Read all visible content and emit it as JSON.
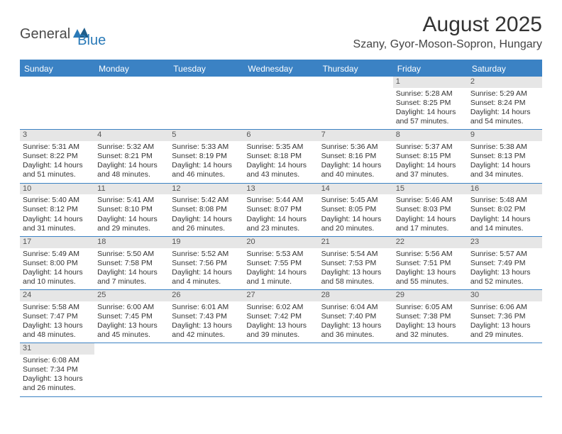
{
  "logo": {
    "text1": "General",
    "text2": "Blue"
  },
  "title": "August 2025",
  "location": "Szany, Gyor-Moson-Sopron, Hungary",
  "weekdays": [
    "Sunday",
    "Monday",
    "Tuesday",
    "Wednesday",
    "Thursday",
    "Friday",
    "Saturday"
  ],
  "colors": {
    "brand": "#3b82c4",
    "dayband": "#e6e6e6",
    "text": "#333333"
  },
  "weeks": [
    [
      null,
      null,
      null,
      null,
      null,
      {
        "n": "1",
        "sr": "Sunrise: 5:28 AM",
        "ss": "Sunset: 8:25 PM",
        "d1": "Daylight: 14 hours",
        "d2": "and 57 minutes."
      },
      {
        "n": "2",
        "sr": "Sunrise: 5:29 AM",
        "ss": "Sunset: 8:24 PM",
        "d1": "Daylight: 14 hours",
        "d2": "and 54 minutes."
      }
    ],
    [
      {
        "n": "3",
        "sr": "Sunrise: 5:31 AM",
        "ss": "Sunset: 8:22 PM",
        "d1": "Daylight: 14 hours",
        "d2": "and 51 minutes."
      },
      {
        "n": "4",
        "sr": "Sunrise: 5:32 AM",
        "ss": "Sunset: 8:21 PM",
        "d1": "Daylight: 14 hours",
        "d2": "and 48 minutes."
      },
      {
        "n": "5",
        "sr": "Sunrise: 5:33 AM",
        "ss": "Sunset: 8:19 PM",
        "d1": "Daylight: 14 hours",
        "d2": "and 46 minutes."
      },
      {
        "n": "6",
        "sr": "Sunrise: 5:35 AM",
        "ss": "Sunset: 8:18 PM",
        "d1": "Daylight: 14 hours",
        "d2": "and 43 minutes."
      },
      {
        "n": "7",
        "sr": "Sunrise: 5:36 AM",
        "ss": "Sunset: 8:16 PM",
        "d1": "Daylight: 14 hours",
        "d2": "and 40 minutes."
      },
      {
        "n": "8",
        "sr": "Sunrise: 5:37 AM",
        "ss": "Sunset: 8:15 PM",
        "d1": "Daylight: 14 hours",
        "d2": "and 37 minutes."
      },
      {
        "n": "9",
        "sr": "Sunrise: 5:38 AM",
        "ss": "Sunset: 8:13 PM",
        "d1": "Daylight: 14 hours",
        "d2": "and 34 minutes."
      }
    ],
    [
      {
        "n": "10",
        "sr": "Sunrise: 5:40 AM",
        "ss": "Sunset: 8:12 PM",
        "d1": "Daylight: 14 hours",
        "d2": "and 31 minutes."
      },
      {
        "n": "11",
        "sr": "Sunrise: 5:41 AM",
        "ss": "Sunset: 8:10 PM",
        "d1": "Daylight: 14 hours",
        "d2": "and 29 minutes."
      },
      {
        "n": "12",
        "sr": "Sunrise: 5:42 AM",
        "ss": "Sunset: 8:08 PM",
        "d1": "Daylight: 14 hours",
        "d2": "and 26 minutes."
      },
      {
        "n": "13",
        "sr": "Sunrise: 5:44 AM",
        "ss": "Sunset: 8:07 PM",
        "d1": "Daylight: 14 hours",
        "d2": "and 23 minutes."
      },
      {
        "n": "14",
        "sr": "Sunrise: 5:45 AM",
        "ss": "Sunset: 8:05 PM",
        "d1": "Daylight: 14 hours",
        "d2": "and 20 minutes."
      },
      {
        "n": "15",
        "sr": "Sunrise: 5:46 AM",
        "ss": "Sunset: 8:03 PM",
        "d1": "Daylight: 14 hours",
        "d2": "and 17 minutes."
      },
      {
        "n": "16",
        "sr": "Sunrise: 5:48 AM",
        "ss": "Sunset: 8:02 PM",
        "d1": "Daylight: 14 hours",
        "d2": "and 14 minutes."
      }
    ],
    [
      {
        "n": "17",
        "sr": "Sunrise: 5:49 AM",
        "ss": "Sunset: 8:00 PM",
        "d1": "Daylight: 14 hours",
        "d2": "and 10 minutes."
      },
      {
        "n": "18",
        "sr": "Sunrise: 5:50 AM",
        "ss": "Sunset: 7:58 PM",
        "d1": "Daylight: 14 hours",
        "d2": "and 7 minutes."
      },
      {
        "n": "19",
        "sr": "Sunrise: 5:52 AM",
        "ss": "Sunset: 7:56 PM",
        "d1": "Daylight: 14 hours",
        "d2": "and 4 minutes."
      },
      {
        "n": "20",
        "sr": "Sunrise: 5:53 AM",
        "ss": "Sunset: 7:55 PM",
        "d1": "Daylight: 14 hours",
        "d2": "and 1 minute."
      },
      {
        "n": "21",
        "sr": "Sunrise: 5:54 AM",
        "ss": "Sunset: 7:53 PM",
        "d1": "Daylight: 13 hours",
        "d2": "and 58 minutes."
      },
      {
        "n": "22",
        "sr": "Sunrise: 5:56 AM",
        "ss": "Sunset: 7:51 PM",
        "d1": "Daylight: 13 hours",
        "d2": "and 55 minutes."
      },
      {
        "n": "23",
        "sr": "Sunrise: 5:57 AM",
        "ss": "Sunset: 7:49 PM",
        "d1": "Daylight: 13 hours",
        "d2": "and 52 minutes."
      }
    ],
    [
      {
        "n": "24",
        "sr": "Sunrise: 5:58 AM",
        "ss": "Sunset: 7:47 PM",
        "d1": "Daylight: 13 hours",
        "d2": "and 48 minutes."
      },
      {
        "n": "25",
        "sr": "Sunrise: 6:00 AM",
        "ss": "Sunset: 7:45 PM",
        "d1": "Daylight: 13 hours",
        "d2": "and 45 minutes."
      },
      {
        "n": "26",
        "sr": "Sunrise: 6:01 AM",
        "ss": "Sunset: 7:43 PM",
        "d1": "Daylight: 13 hours",
        "d2": "and 42 minutes."
      },
      {
        "n": "27",
        "sr": "Sunrise: 6:02 AM",
        "ss": "Sunset: 7:42 PM",
        "d1": "Daylight: 13 hours",
        "d2": "and 39 minutes."
      },
      {
        "n": "28",
        "sr": "Sunrise: 6:04 AM",
        "ss": "Sunset: 7:40 PM",
        "d1": "Daylight: 13 hours",
        "d2": "and 36 minutes."
      },
      {
        "n": "29",
        "sr": "Sunrise: 6:05 AM",
        "ss": "Sunset: 7:38 PM",
        "d1": "Daylight: 13 hours",
        "d2": "and 32 minutes."
      },
      {
        "n": "30",
        "sr": "Sunrise: 6:06 AM",
        "ss": "Sunset: 7:36 PM",
        "d1": "Daylight: 13 hours",
        "d2": "and 29 minutes."
      }
    ],
    [
      {
        "n": "31",
        "sr": "Sunrise: 6:08 AM",
        "ss": "Sunset: 7:34 PM",
        "d1": "Daylight: 13 hours",
        "d2": "and 26 minutes."
      },
      null,
      null,
      null,
      null,
      null,
      null
    ]
  ]
}
